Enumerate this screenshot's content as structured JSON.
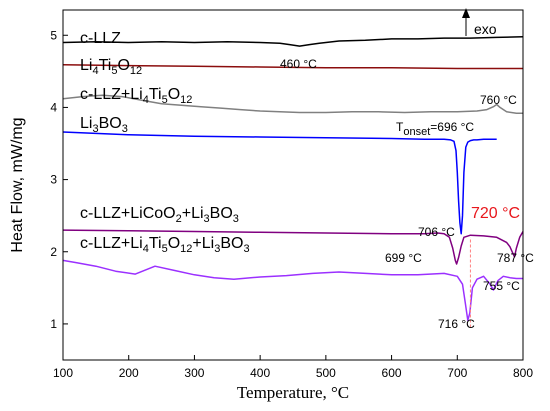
{
  "chart_data": {
    "type": "line",
    "xlabel": "Temperature, °C",
    "ylabel": "Heat Flow, mW/mg",
    "xlim": [
      100,
      800
    ],
    "ylim": [
      0.5,
      5.35
    ],
    "x_ticks": [
      100,
      200,
      300,
      400,
      500,
      600,
      700,
      800
    ],
    "y_ticks": [
      1,
      2,
      3,
      4,
      5
    ],
    "grid": false,
    "series": [
      {
        "name": "c-LLZ",
        "label_parts": [
          [
            "c-LLZ",
            ""
          ]
        ],
        "color": "#000000",
        "x": [
          100,
          150,
          200,
          250,
          300,
          350,
          400,
          430,
          445,
          460,
          475,
          490,
          520,
          560,
          600,
          640,
          680,
          720,
          760,
          800
        ],
        "y": [
          4.9,
          4.91,
          4.9,
          4.91,
          4.9,
          4.91,
          4.9,
          4.89,
          4.87,
          4.85,
          4.87,
          4.89,
          4.92,
          4.93,
          4.95,
          4.95,
          4.96,
          4.96,
          4.97,
          4.98
        ]
      },
      {
        "name": "Li4Ti5O12",
        "label_parts": [
          [
            "Li",
            ""
          ],
          [
            "4",
            "sub"
          ],
          [
            "Ti",
            ""
          ],
          [
            "5",
            "sub"
          ],
          [
            "O",
            ""
          ],
          [
            "12",
            "sub"
          ]
        ],
        "color": "#8b0d0d",
        "x": [
          100,
          200,
          300,
          400,
          500,
          600,
          700,
          800
        ],
        "y": [
          4.59,
          4.58,
          4.57,
          4.56,
          4.55,
          4.55,
          4.54,
          4.54
        ]
      },
      {
        "name": "c-LLZ+Li4Ti5O12",
        "label_parts": [
          [
            "c-LLZ+Li",
            ""
          ],
          [
            "4",
            "sub"
          ],
          [
            "Ti",
            ""
          ],
          [
            "5",
            "sub"
          ],
          [
            "O",
            ""
          ],
          [
            "12",
            "sub"
          ]
        ],
        "color": "#808080",
        "x": [
          100,
          130,
          160,
          190,
          220,
          250,
          280,
          310,
          340,
          370,
          400,
          430,
          460,
          500,
          540,
          580,
          620,
          660,
          700,
          730,
          745,
          755,
          760,
          765,
          775,
          790,
          800
        ],
        "y": [
          4.12,
          4.15,
          4.17,
          4.15,
          4.1,
          4.05,
          4.03,
          4.01,
          3.99,
          3.97,
          3.95,
          3.94,
          3.93,
          3.93,
          3.94,
          3.94,
          3.93,
          3.94,
          3.94,
          3.95,
          3.97,
          4.01,
          4.04,
          4.0,
          3.94,
          3.92,
          3.92
        ]
      },
      {
        "name": "Li3BO3",
        "label_parts": [
          [
            "Li",
            ""
          ],
          [
            "3",
            "sub"
          ],
          [
            "BO",
            ""
          ],
          [
            "3",
            "sub"
          ]
        ],
        "color": "#0000ff",
        "x": [
          100,
          200,
          300,
          400,
          500,
          600,
          650,
          680,
          690,
          695,
          698,
          700,
          702,
          704,
          706,
          708,
          710,
          713,
          716,
          720,
          725,
          730,
          740,
          750,
          760
        ],
        "y": [
          3.66,
          3.62,
          3.6,
          3.59,
          3.58,
          3.57,
          3.56,
          3.56,
          3.55,
          3.53,
          3.4,
          3.1,
          2.7,
          2.4,
          2.25,
          2.5,
          3.1,
          3.45,
          3.52,
          3.54,
          3.55,
          3.55,
          3.56,
          3.56,
          3.56
        ]
      },
      {
        "name": "c-LLZ+LiCoO2+Li3BO3",
        "label_parts": [
          [
            "c-LLZ+LiCoO",
            ""
          ],
          [
            "2",
            "sub"
          ],
          [
            "+Li",
            ""
          ],
          [
            "3",
            "sub"
          ],
          [
            "BO",
            ""
          ],
          [
            "3",
            "sub"
          ]
        ],
        "color": "#800080",
        "x": [
          100,
          200,
          300,
          400,
          500,
          600,
          650,
          670,
          680,
          688,
          693,
          697,
          699,
          702,
          706,
          710,
          720,
          740,
          760,
          775,
          780,
          784,
          787,
          790,
          795,
          800
        ],
        "y": [
          2.3,
          2.29,
          2.28,
          2.27,
          2.26,
          2.25,
          2.25,
          2.26,
          2.25,
          2.2,
          2.05,
          1.88,
          1.83,
          1.92,
          2.08,
          2.2,
          2.23,
          2.22,
          2.2,
          2.13,
          2.07,
          1.99,
          1.93,
          2.05,
          2.2,
          2.28
        ]
      },
      {
        "name": "c-LLZ+Li4Ti5O12+Li3BO3",
        "label_parts": [
          [
            "c-LLZ+Li",
            ""
          ],
          [
            "4",
            "sub"
          ],
          [
            "Ti",
            ""
          ],
          [
            "5",
            "sub"
          ],
          [
            "O",
            ""
          ],
          [
            "12",
            "sub"
          ],
          [
            "+Li",
            ""
          ],
          [
            "3",
            "sub"
          ],
          [
            "BO",
            ""
          ],
          [
            "3",
            "sub"
          ]
        ],
        "color": "#9b30ff",
        "x": [
          100,
          120,
          150,
          180,
          210,
          240,
          270,
          300,
          330,
          360,
          400,
          440,
          480,
          520,
          560,
          600,
          640,
          680,
          700,
          708,
          712,
          716,
          719,
          723,
          730,
          740,
          750,
          755,
          762,
          770,
          780,
          790,
          800
        ],
        "y": [
          1.88,
          1.85,
          1.8,
          1.73,
          1.69,
          1.8,
          1.74,
          1.68,
          1.64,
          1.62,
          1.65,
          1.67,
          1.7,
          1.72,
          1.7,
          1.68,
          1.68,
          1.7,
          1.66,
          1.55,
          1.3,
          1.05,
          1.15,
          1.5,
          1.62,
          1.66,
          1.55,
          1.47,
          1.6,
          1.66,
          1.64,
          1.63,
          1.63
        ]
      }
    ],
    "annotations": [
      {
        "text": "460 °C",
        "x": 460,
        "y": 4.85
      },
      {
        "text": "760 °C",
        "x": 760,
        "y": 4.05
      },
      {
        "text_parts": [
          [
            "T",
            ""
          ],
          [
            "onset",
            "sub"
          ],
          [
            "=696 °C",
            ""
          ]
        ],
        "x": 696,
        "y": 3.55
      },
      {
        "text": "706 °C",
        "x": 706,
        "y": 2.25
      },
      {
        "text": "720 °C",
        "x": 720,
        "y": 2.25,
        "color": "#e8171c"
      },
      {
        "text": "699 °C",
        "x": 699,
        "y": 1.83
      },
      {
        "text": "787 °C",
        "x": 787,
        "y": 1.93
      },
      {
        "text": "755 °C",
        "x": 755,
        "y": 1.47
      },
      {
        "text": "716 °C",
        "x": 716,
        "y": 1.05
      }
    ],
    "reference_line": {
      "x": 720,
      "y_range": [
        0.95,
        2.2
      ],
      "color": "#ff7f7f",
      "style": "dashed"
    },
    "exo_label": "exo"
  }
}
